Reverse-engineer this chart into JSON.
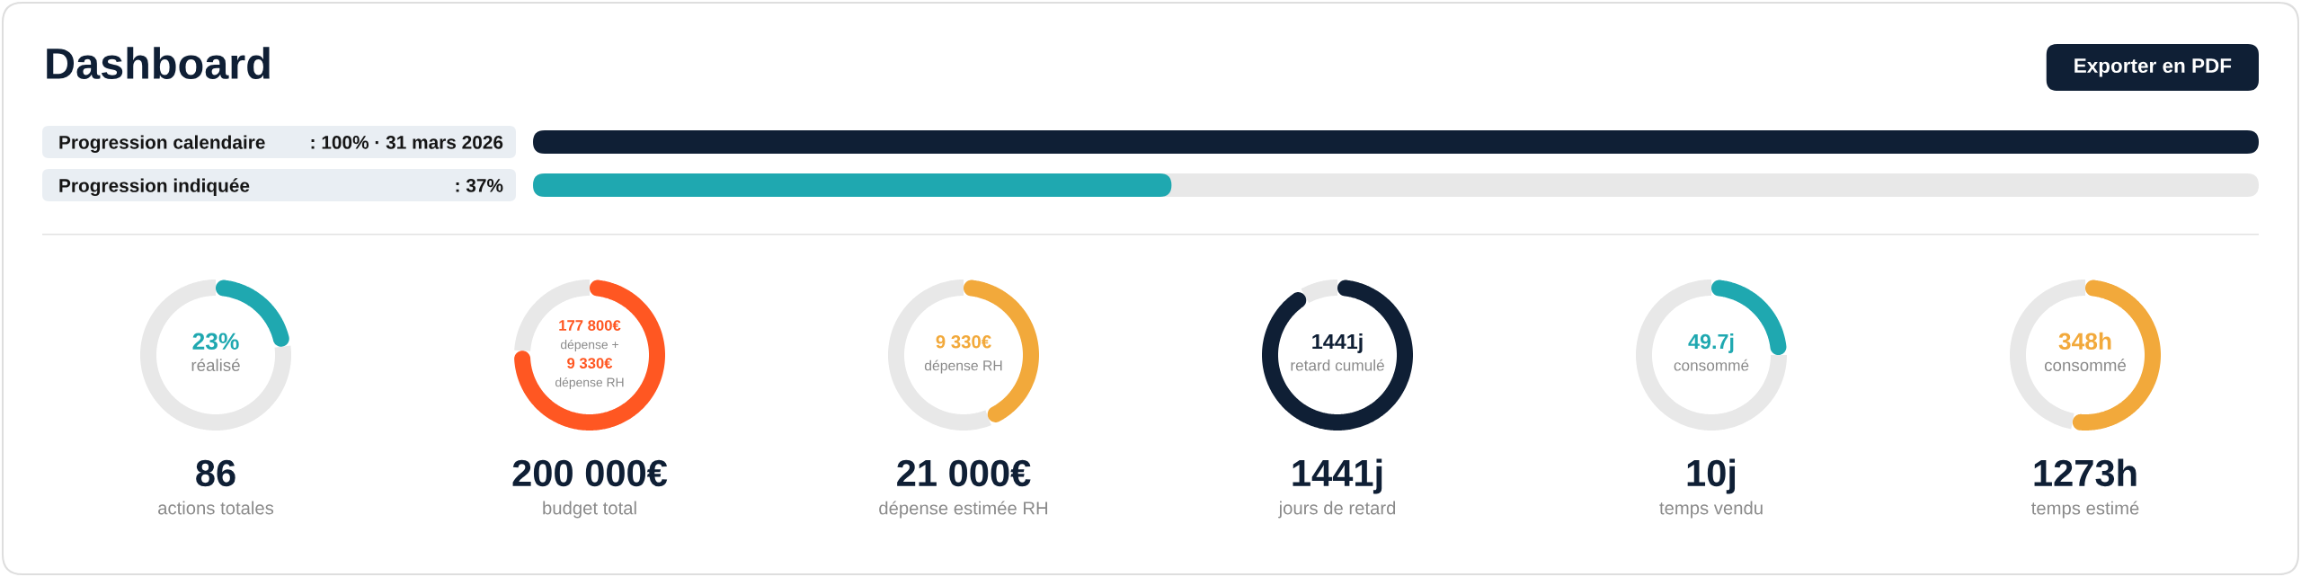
{
  "chart_data": [
    {
      "type": "bar",
      "orientation": "horizontal",
      "title": "Dashboard",
      "annotations": [
        "Exporter en PDF"
      ],
      "categories": [
        "Progression calendaire",
        "Progression indiquée"
      ],
      "series": [
        {
          "colors": [
            "#0f1f35",
            "#1fa8b0"
          ],
          "values": [
            100,
            37
          ],
          "value_labels": [
            ": 100% · 31 mars 2026",
            ": 37%"
          ]
        }
      ],
      "tick_labels": "y"
    },
    {
      "type": "donut",
      "title": "86",
      "subtitle": "actions totales",
      "annotations": [
        "23%",
        "réalisé"
      ],
      "categories": [
        null,
        null
      ],
      "values": [
        23,
        77
      ],
      "colors": [
        "#1fa8b0",
        "#e8e8e8"
      ]
    },
    {
      "type": "donut",
      "title": "200 000€",
      "subtitle": "budget total",
      "annotations": [
        "177 800€",
        "dépense +",
        "9 330€",
        "dépense RH"
      ],
      "categories": [
        null,
        null
      ],
      "values": [
        76,
        24
      ],
      "colors": [
        "#ff5722",
        "#e8e8e8"
      ]
    },
    {
      "type": "donut",
      "title": "21 000€",
      "subtitle": "dépense estimée RH",
      "annotations": [
        "9 330€",
        "dépense RH"
      ],
      "categories": [
        null,
        null
      ],
      "values": [
        44,
        56
      ],
      "colors": [
        "#f2a93b",
        "#e8e8e8"
      ]
    },
    {
      "type": "donut",
      "title": "1441j",
      "subtitle": "jours de retard",
      "annotations": [
        "1441j",
        "retard cumulé"
      ],
      "categories": [
        null,
        null
      ],
      "values": [
        92,
        8
      ],
      "colors": [
        "#0f1f35",
        "#e8e8e8"
      ]
    },
    {
      "type": "donut",
      "title": "10j",
      "subtitle": "temps vendu",
      "annotations": [
        "49.7j",
        "consommé"
      ],
      "categories": [
        null,
        null
      ],
      "values": [
        25,
        75
      ],
      "colors": [
        "#1fa8b0",
        "#e8e8e8"
      ]
    },
    {
      "type": "donut",
      "title": "1273h",
      "subtitle": "temps estimé",
      "annotations": [
        "348h",
        "consommé"
      ],
      "categories": [
        null,
        null
      ],
      "values": [
        53,
        47
      ],
      "colors": [
        "#f2a93b",
        "#e8e8e8"
      ]
    }
  ]
}
